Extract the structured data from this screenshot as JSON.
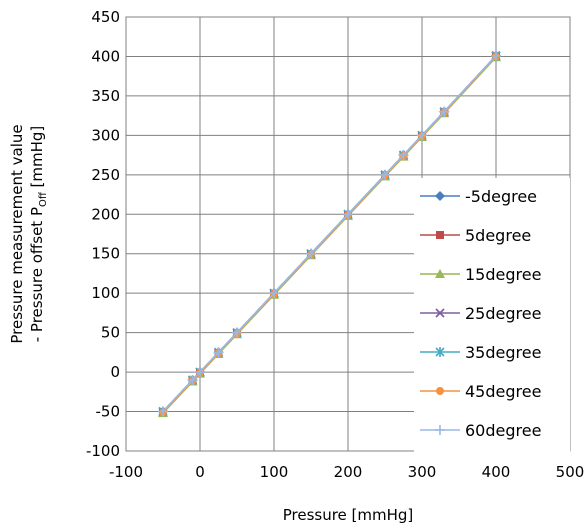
{
  "chart_data": {
    "type": "line",
    "xlabel": "Pressure [mmHg]",
    "ylabel_line1": "Pressure measurement value",
    "ylabel_line2_prefix": "- Pressure offset P",
    "ylabel_line2_sub": "Off",
    "ylabel_line2_suffix": " [mmHg]",
    "xlim": [
      -100,
      500
    ],
    "ylim": [
      -100,
      450
    ],
    "xticks": [
      -100,
      0,
      100,
      200,
      300,
      400,
      500
    ],
    "yticks": [
      -100,
      -50,
      0,
      50,
      100,
      150,
      200,
      250,
      300,
      350,
      400,
      450
    ],
    "grid": true,
    "legend_position": "right",
    "x": [
      -50,
      -10,
      0,
      25,
      50,
      100,
      150,
      200,
      250,
      275,
      300,
      330,
      400
    ],
    "series": [
      {
        "name": "-5degree",
        "color": "#4a7ebb",
        "marker": "diamond",
        "values": [
          -50,
          -10,
          0,
          25,
          50,
          100,
          150,
          200,
          250,
          275,
          300,
          330,
          401
        ]
      },
      {
        "name": "5degree",
        "color": "#be4b48",
        "marker": "square",
        "values": [
          -51,
          -11,
          -1,
          24,
          49,
          99,
          149,
          199,
          249,
          274,
          299,
          329,
          400
        ]
      },
      {
        "name": "15degree",
        "color": "#98b954",
        "marker": "triangle",
        "values": [
          -52,
          -12,
          -2,
          23,
          48,
          98,
          148,
          198,
          248,
          273,
          298,
          328,
          399
        ]
      },
      {
        "name": "25degree",
        "color": "#7d60a0",
        "marker": "x",
        "values": [
          -50,
          -10,
          0,
          25,
          50,
          100,
          150,
          200,
          250,
          275,
          300,
          330,
          401
        ]
      },
      {
        "name": "35degree",
        "color": "#46aac5",
        "marker": "star",
        "values": [
          -50,
          -10,
          0,
          25,
          50,
          100,
          150,
          200,
          250,
          275,
          300,
          330,
          401
        ]
      },
      {
        "name": "45degree",
        "color": "#f69240",
        "marker": "circle",
        "values": [
          -51,
          -11,
          -1,
          24,
          49,
          99,
          149,
          199,
          249,
          274,
          299,
          329,
          400
        ]
      },
      {
        "name": "60degree",
        "color": "#99b9e5",
        "marker": "plus",
        "values": [
          -50,
          -10,
          0,
          25,
          50,
          100,
          150,
          200,
          250,
          275,
          300,
          330,
          401
        ]
      }
    ]
  }
}
